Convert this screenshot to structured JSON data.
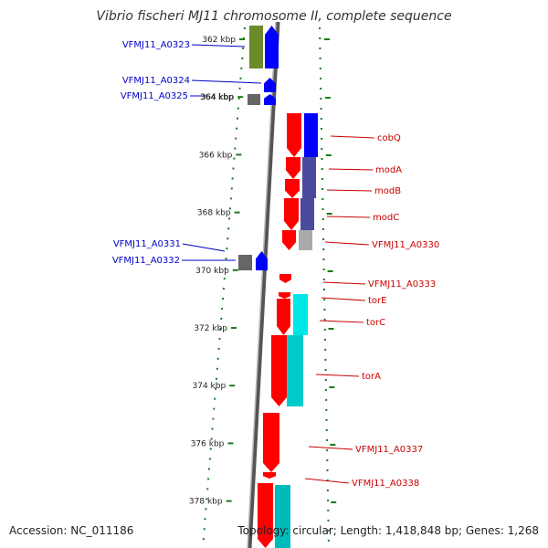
{
  "title": "Vibrio fischeri MJ11 chromosome II, complete sequence",
  "footer": {
    "accession": "Accession: NC_011186",
    "stats": "Topology: circular; Length: 1,418,848 bp; Genes: 1,268"
  },
  "ticks": [
    {
      "kbp": 362,
      "label": "362 kbp"
    },
    {
      "kbp": 364,
      "label": "364 kbp"
    },
    {
      "kbp": 366,
      "label": "366 kbp"
    },
    {
      "kbp": 368,
      "label": "368 kbp"
    },
    {
      "kbp": 370,
      "label": "370 kbp"
    },
    {
      "kbp": 372,
      "label": "372 kbp"
    },
    {
      "kbp": 374,
      "label": "374 kbp"
    },
    {
      "kbp": 376,
      "label": "376 kbp"
    },
    {
      "kbp": 378,
      "label": "378 kbp"
    }
  ],
  "colors": {
    "reverse_label": "#0000cc",
    "forward_label": "#cc0000",
    "tick": "#1a7a1a",
    "backbone": "#888888"
  },
  "genes": [
    {
      "name": "VFMJ11_A0323",
      "strand": "reverse"
    },
    {
      "name": "VFMJ11_A0324",
      "strand": "reverse"
    },
    {
      "name": "VFMJ11_A0325",
      "strand": "reverse"
    },
    {
      "name": "VFMJ11_A0331",
      "strand": "reverse"
    },
    {
      "name": "VFMJ11_A0332",
      "strand": "reverse"
    },
    {
      "name": "cobQ",
      "strand": "forward"
    },
    {
      "name": "modA",
      "strand": "forward"
    },
    {
      "name": "modB",
      "strand": "forward"
    },
    {
      "name": "modC",
      "strand": "forward"
    },
    {
      "name": "VFMJ11_A0330",
      "strand": "forward"
    },
    {
      "name": "VFMJ11_A0333",
      "strand": "forward"
    },
    {
      "name": "torE",
      "strand": "forward"
    },
    {
      "name": "torC",
      "strand": "forward"
    },
    {
      "name": "torA",
      "strand": "forward"
    },
    {
      "name": "VFMJ11_A0337",
      "strand": "forward"
    },
    {
      "name": "VFMJ11_A0338",
      "strand": "forward"
    }
  ]
}
